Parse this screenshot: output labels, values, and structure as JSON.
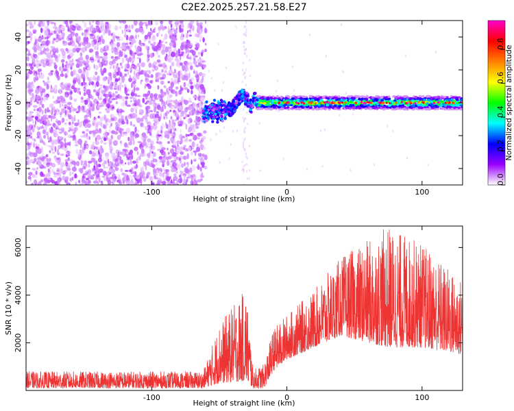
{
  "figure": {
    "title": "C2E2.2025.257.21.58.E27"
  },
  "chart_data": [
    {
      "type": "heatmap",
      "xlabel": "Height of straight line (km)",
      "ylabel": "Frequency (Hz)",
      "xlim": [
        -193,
        130
      ],
      "ylim": [
        -50,
        50
      ],
      "x_ticks": [
        -100,
        0,
        100
      ],
      "x_tick_labels": [
        "-100",
        "0",
        "100"
      ],
      "y_ticks": [
        -40,
        -20,
        0,
        20,
        40
      ],
      "y_tick_labels": [
        "-40",
        "-20",
        "0",
        "20",
        "40"
      ],
      "colorbar": {
        "label": "Normalized spectral amplitude",
        "range": [
          0,
          0.97
        ],
        "ticks": [
          0.0,
          0.2,
          0.4,
          0.6,
          0.8
        ],
        "tick_labels": [
          "0.0",
          "0.2",
          "0.4",
          "0.6",
          "0.8"
        ],
        "colors": [
          "#ffffff",
          "#9900ff",
          "#0000ff",
          "#00ffff",
          "#00ff00",
          "#ffff00",
          "#ff8000",
          "#ff0000",
          "#ff00cc"
        ]
      },
      "regions": [
        {
          "name": "noise",
          "x_range": [
            -193,
            -60
          ],
          "y_range": [
            -50,
            50
          ],
          "amplitude_range": [
            0.02,
            0.1
          ]
        },
        {
          "name": "onset",
          "x_range": [
            -62,
            -22
          ],
          "y_range": [
            -12,
            10
          ],
          "amplitude_range": [
            0.15,
            0.35
          ]
        },
        {
          "name": "signal band",
          "x_range": [
            -22,
            130
          ],
          "y_range": [
            -4,
            4
          ],
          "center_freq": 0,
          "peak_amplitude": 0.97
        }
      ],
      "grid": false
    },
    {
      "type": "line",
      "xlabel": "Height of straight line (km)",
      "ylabel": "SNR (10 * v/v)",
      "xlim": [
        -193,
        130
      ],
      "ylim": [
        0,
        6900
      ],
      "x_ticks": [
        -100,
        0,
        100
      ],
      "x_tick_labels": [
        "-100",
        "0",
        "100"
      ],
      "y_ticks": [
        2000,
        4000,
        6000
      ],
      "y_tick_labels": [
        "2000",
        "4000",
        "6000"
      ],
      "series": [
        {
          "color": "#ee3333",
          "envelope": [
            {
              "x": -193,
              "low": 100,
              "high": 800
            },
            {
              "x": -62,
              "low": 100,
              "high": 800
            },
            {
              "x": -50,
              "low": 300,
              "high": 2800
            },
            {
              "x": -30,
              "low": 400,
              "high": 4300
            },
            {
              "x": -25,
              "low": 80,
              "high": 900
            },
            {
              "x": -17,
              "low": 100,
              "high": 1100
            },
            {
              "x": -10,
              "low": 800,
              "high": 2600
            },
            {
              "x": 0,
              "low": 1300,
              "high": 3200
            },
            {
              "x": 20,
              "low": 1800,
              "high": 4200
            },
            {
              "x": 40,
              "low": 2300,
              "high": 5600
            },
            {
              "x": 60,
              "low": 2000,
              "high": 6300
            },
            {
              "x": 75,
              "low": 1800,
              "high": 6900
            },
            {
              "x": 100,
              "low": 1800,
              "high": 6200
            },
            {
              "x": 130,
              "low": 1500,
              "high": 4600
            }
          ]
        }
      ],
      "grid": false
    }
  ]
}
